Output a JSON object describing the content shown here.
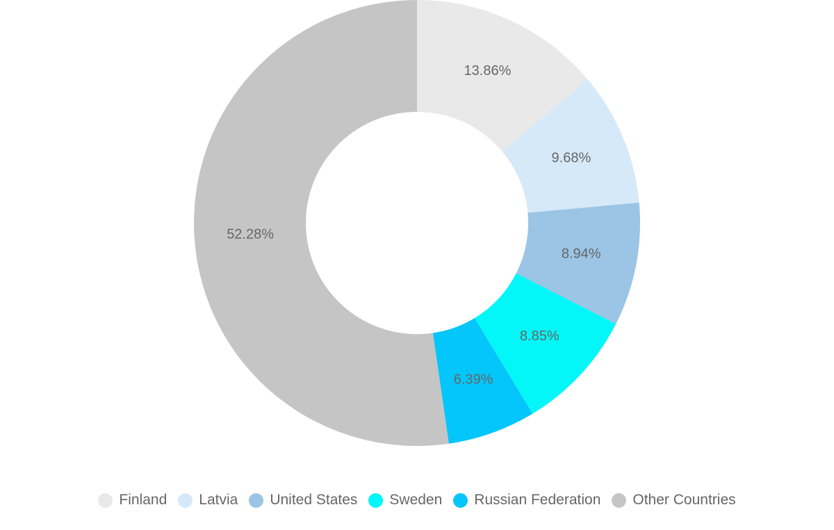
{
  "chart_data": {
    "type": "pie",
    "variant": "donut",
    "title": "",
    "categories": [
      "Finland",
      "Latvia",
      "United States",
      "Sweden",
      "Russian Federation",
      "Other Countries"
    ],
    "values": [
      13.86,
      9.68,
      8.94,
      8.85,
      6.39,
      52.28
    ],
    "labels": [
      "13.86%",
      "9.68%",
      "8.94%",
      "8.85%",
      "6.39%",
      "52.28%"
    ],
    "colors": [
      "#e8e9e8",
      "#d6e9f8",
      "#9bc4e5",
      "#03f7f8",
      "#04c6fa",
      "#c5c5c5"
    ],
    "unit": "%",
    "start_angle_deg": 0,
    "direction": "clockwise",
    "legend_position": "bottom",
    "center": [
      600,
      321
    ],
    "outer_radius": 321,
    "inner_radius": 160
  },
  "legend": {
    "items": [
      {
        "label": "Finland",
        "color": "#e8e9e8"
      },
      {
        "label": "Latvia",
        "color": "#d6e9f8"
      },
      {
        "label": "United States",
        "color": "#9bc4e5"
      },
      {
        "label": "Sweden",
        "color": "#03f7f8"
      },
      {
        "label": "Russian Federation",
        "color": "#04c6fa"
      },
      {
        "label": "Other Countries",
        "color": "#c5c5c5"
      }
    ]
  }
}
